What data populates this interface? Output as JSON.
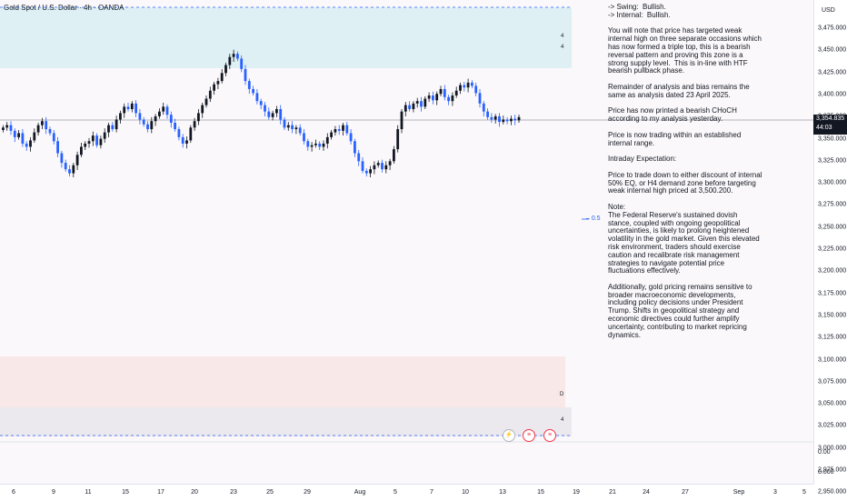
{
  "symbol_title": "Gold Spot / U.S. Dollar · 4h · OANDA",
  "currency": "USD",
  "price_axis_ticks": [
    "3,475.000",
    "3,450.000",
    "3,425.000",
    "3,400.000",
    "3,375.000",
    "3,350.000",
    "3,325.000",
    "3,300.000",
    "3,275.000",
    "3,250.000",
    "3,225.000",
    "3,200.000",
    "3,175.000",
    "3,150.000",
    "3,125.000",
    "3,100.000",
    "3,075.000",
    "3,050.000",
    "3,025.000",
    "3,000.000",
    "2,975.000",
    "2,950.000"
  ],
  "oscillator_ticks": [
    "0.00",
    "0.000"
  ],
  "current_price": "3,354.835",
  "countdown": "44:03",
  "time_axis_labels": [
    "6",
    "9",
    "11",
    "15",
    "17",
    "20",
    "23",
    "25",
    "29",
    "Aug",
    "5",
    "7",
    "10",
    "13",
    "15",
    "19",
    "21",
    "24",
    "27",
    "Sep",
    "3",
    "5"
  ],
  "fib_label": "0.5",
  "zone_labels": {
    "supply_top": "4",
    "supply_bottom": "4",
    "demand_top": "D",
    "demand_bottom": "4"
  },
  "analysis": [
    "-> Swing:  Bullish.\n-> Internal:  Bullish.",
    "You will note that price has targeted weak internal high on three separate occasions which has now formed a triple top, this is a bearish reversal pattern and proving this zone is a strong supply level.  This is in-line with HTF bearish pullback phase.",
    "Remainder of analysis and bias remains the same as analysis dated 23 April 2025.",
    "Price has now printed a bearish CHoCH according to my analysis yesterday.",
    "Price is now trading within an established internal range.",
    "Intraday Expectation:",
    "Price to trade down to either discount of internal 50% EQ, or H4 demand zone before targeting weak internal high priced at 3,500.200.",
    "Note:\nThe Federal Reserve's sustained dovish stance, coupled with ongoing geopolitical uncertainties, is likely to prolong heightened volatility in the gold market. Given this elevated risk environment, traders should exercise caution and recalibrate risk management strategies to navigate potential price fluctuations effectively.",
    "Additionally, gold pricing remains sensitive to broader macroeconomic developments, including policy decisions under President Trump. Shifts in geopolitical strategy and economic directives could further amplify uncertainty, contributing to market repricing dynamics."
  ],
  "colors": {
    "bull": "#131722",
    "bear": "#2962ff",
    "supply_zone": "#d1ecf1",
    "demand_zone": "#f8e3e3",
    "dashed_line": "#2962ff"
  },
  "icons": [
    "lightning-icon",
    "flag-us-icon",
    "flag-us-2-icon"
  ],
  "chart_data": {
    "type": "candlestick",
    "ylim": [
      2950,
      3500
    ],
    "closes": [
      3342,
      3345,
      3338,
      3330,
      3335,
      3322,
      3318,
      3326,
      3336,
      3345,
      3350,
      3340,
      3335,
      3325,
      3310,
      3298,
      3290,
      3285,
      3295,
      3308,
      3318,
      3322,
      3325,
      3332,
      3320,
      3328,
      3336,
      3345,
      3340,
      3352,
      3360,
      3368,
      3365,
      3372,
      3360,
      3352,
      3346,
      3340,
      3350,
      3356,
      3362,
      3368,
      3358,
      3348,
      3340,
      3330,
      3322,
      3326,
      3342,
      3350,
      3360,
      3370,
      3378,
      3388,
      3396,
      3400,
      3410,
      3420,
      3430,
      3434,
      3428,
      3415,
      3400,
      3390,
      3385,
      3375,
      3370,
      3362,
      3355,
      3360,
      3365,
      3352,
      3342,
      3345,
      3340,
      3342,
      3335,
      3325,
      3318,
      3320,
      3322,
      3318,
      3322,
      3330,
      3336,
      3340,
      3338,
      3345,
      3335,
      3325,
      3310,
      3300,
      3288,
      3285,
      3290,
      3295,
      3298,
      3290,
      3295,
      3300,
      3315,
      3340,
      3362,
      3370,
      3365,
      3372,
      3375,
      3368,
      3378,
      3382,
      3376,
      3384,
      3390,
      3380,
      3375,
      3382,
      3388,
      3395,
      3392,
      3398,
      3394,
      3385,
      3372,
      3362,
      3355,
      3352,
      3356,
      3349,
      3352,
      3350,
      3353,
      3351,
      3355
    ]
  }
}
